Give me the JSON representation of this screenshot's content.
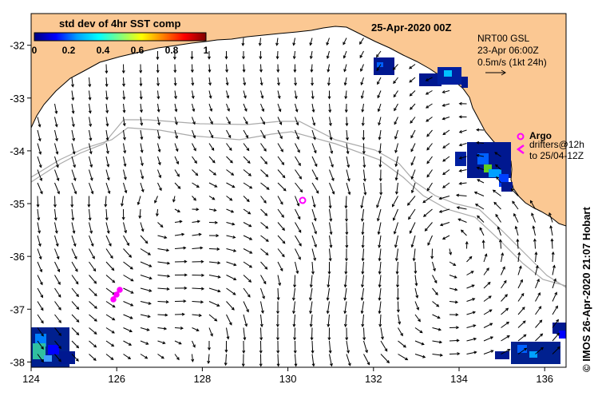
{
  "title": "25-Apr-2020 00Z",
  "colorbar": {
    "title": "std dev of 4hr SST comp",
    "ticks": [
      "0",
      "0.2",
      "0.4",
      "0.6",
      "0.8",
      "1"
    ],
    "colors": [
      "#00007f",
      "#0000ff",
      "#00a0ff",
      "#00ffff",
      "#80ff80",
      "#ffff00",
      "#ff8000",
      "#ff0000",
      "#800000"
    ]
  },
  "map": {
    "lon_range": [
      124,
      136.5
    ],
    "lat_range": [
      -38.1,
      -31.4
    ],
    "x_ticks": [
      "124",
      "126",
      "128",
      "130",
      "132",
      "134",
      "136"
    ],
    "y_ticks": [
      "-32",
      "-33",
      "-34",
      "-35",
      "-36",
      "-37",
      "-38"
    ],
    "land_color": "#fbc893",
    "isobath_color": "#aaaaaa",
    "argo_color": "#ff00ff"
  },
  "currents_info": {
    "line1": "NRT00 GSL",
    "line2": "23-Apr 06:00Z",
    "line3": "0.5m/s (1kt 24h)"
  },
  "argo_legend": {
    "label": "Argo",
    "line2": "drifters@12h",
    "line3": "to 25/04-12Z"
  },
  "credit": "© IMOS 26-Apr-2020 21:07 Hobart"
}
